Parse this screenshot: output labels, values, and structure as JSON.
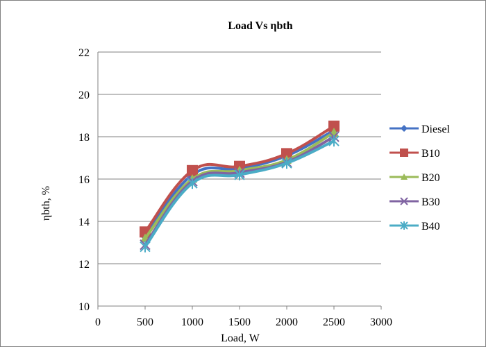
{
  "chart_data": {
    "type": "line",
    "title": "Load Vs ηbth",
    "xlabel": "Load, W",
    "ylabel": "ηbth, %",
    "xlim": [
      0,
      3000
    ],
    "ylim": [
      10,
      22
    ],
    "xticks": [
      0,
      500,
      1000,
      1500,
      2000,
      2500,
      3000
    ],
    "yticks": [
      10,
      12,
      14,
      16,
      18,
      20,
      22
    ],
    "grid": "horizontal",
    "legend_position": "right",
    "x": [
      500,
      1000,
      1500,
      2000,
      2500
    ],
    "series": [
      {
        "name": "Diesel",
        "values": [
          13.3,
          16.2,
          16.5,
          17.1,
          18.3
        ],
        "color": "#4472C4",
        "marker": "diamond"
      },
      {
        "name": "B10",
        "values": [
          13.5,
          16.4,
          16.6,
          17.2,
          18.5
        ],
        "color": "#C0504D",
        "marker": "square"
      },
      {
        "name": "B20",
        "values": [
          13.2,
          16.0,
          16.4,
          16.9,
          18.2
        ],
        "color": "#9BBB59",
        "marker": "triangle"
      },
      {
        "name": "B30",
        "values": [
          12.9,
          15.9,
          16.3,
          16.8,
          18.0
        ],
        "color": "#8064A2",
        "marker": "x"
      },
      {
        "name": "B40",
        "values": [
          12.8,
          15.8,
          16.2,
          16.75,
          17.8
        ],
        "color": "#4BACC6",
        "marker": "asterisk"
      }
    ]
  }
}
